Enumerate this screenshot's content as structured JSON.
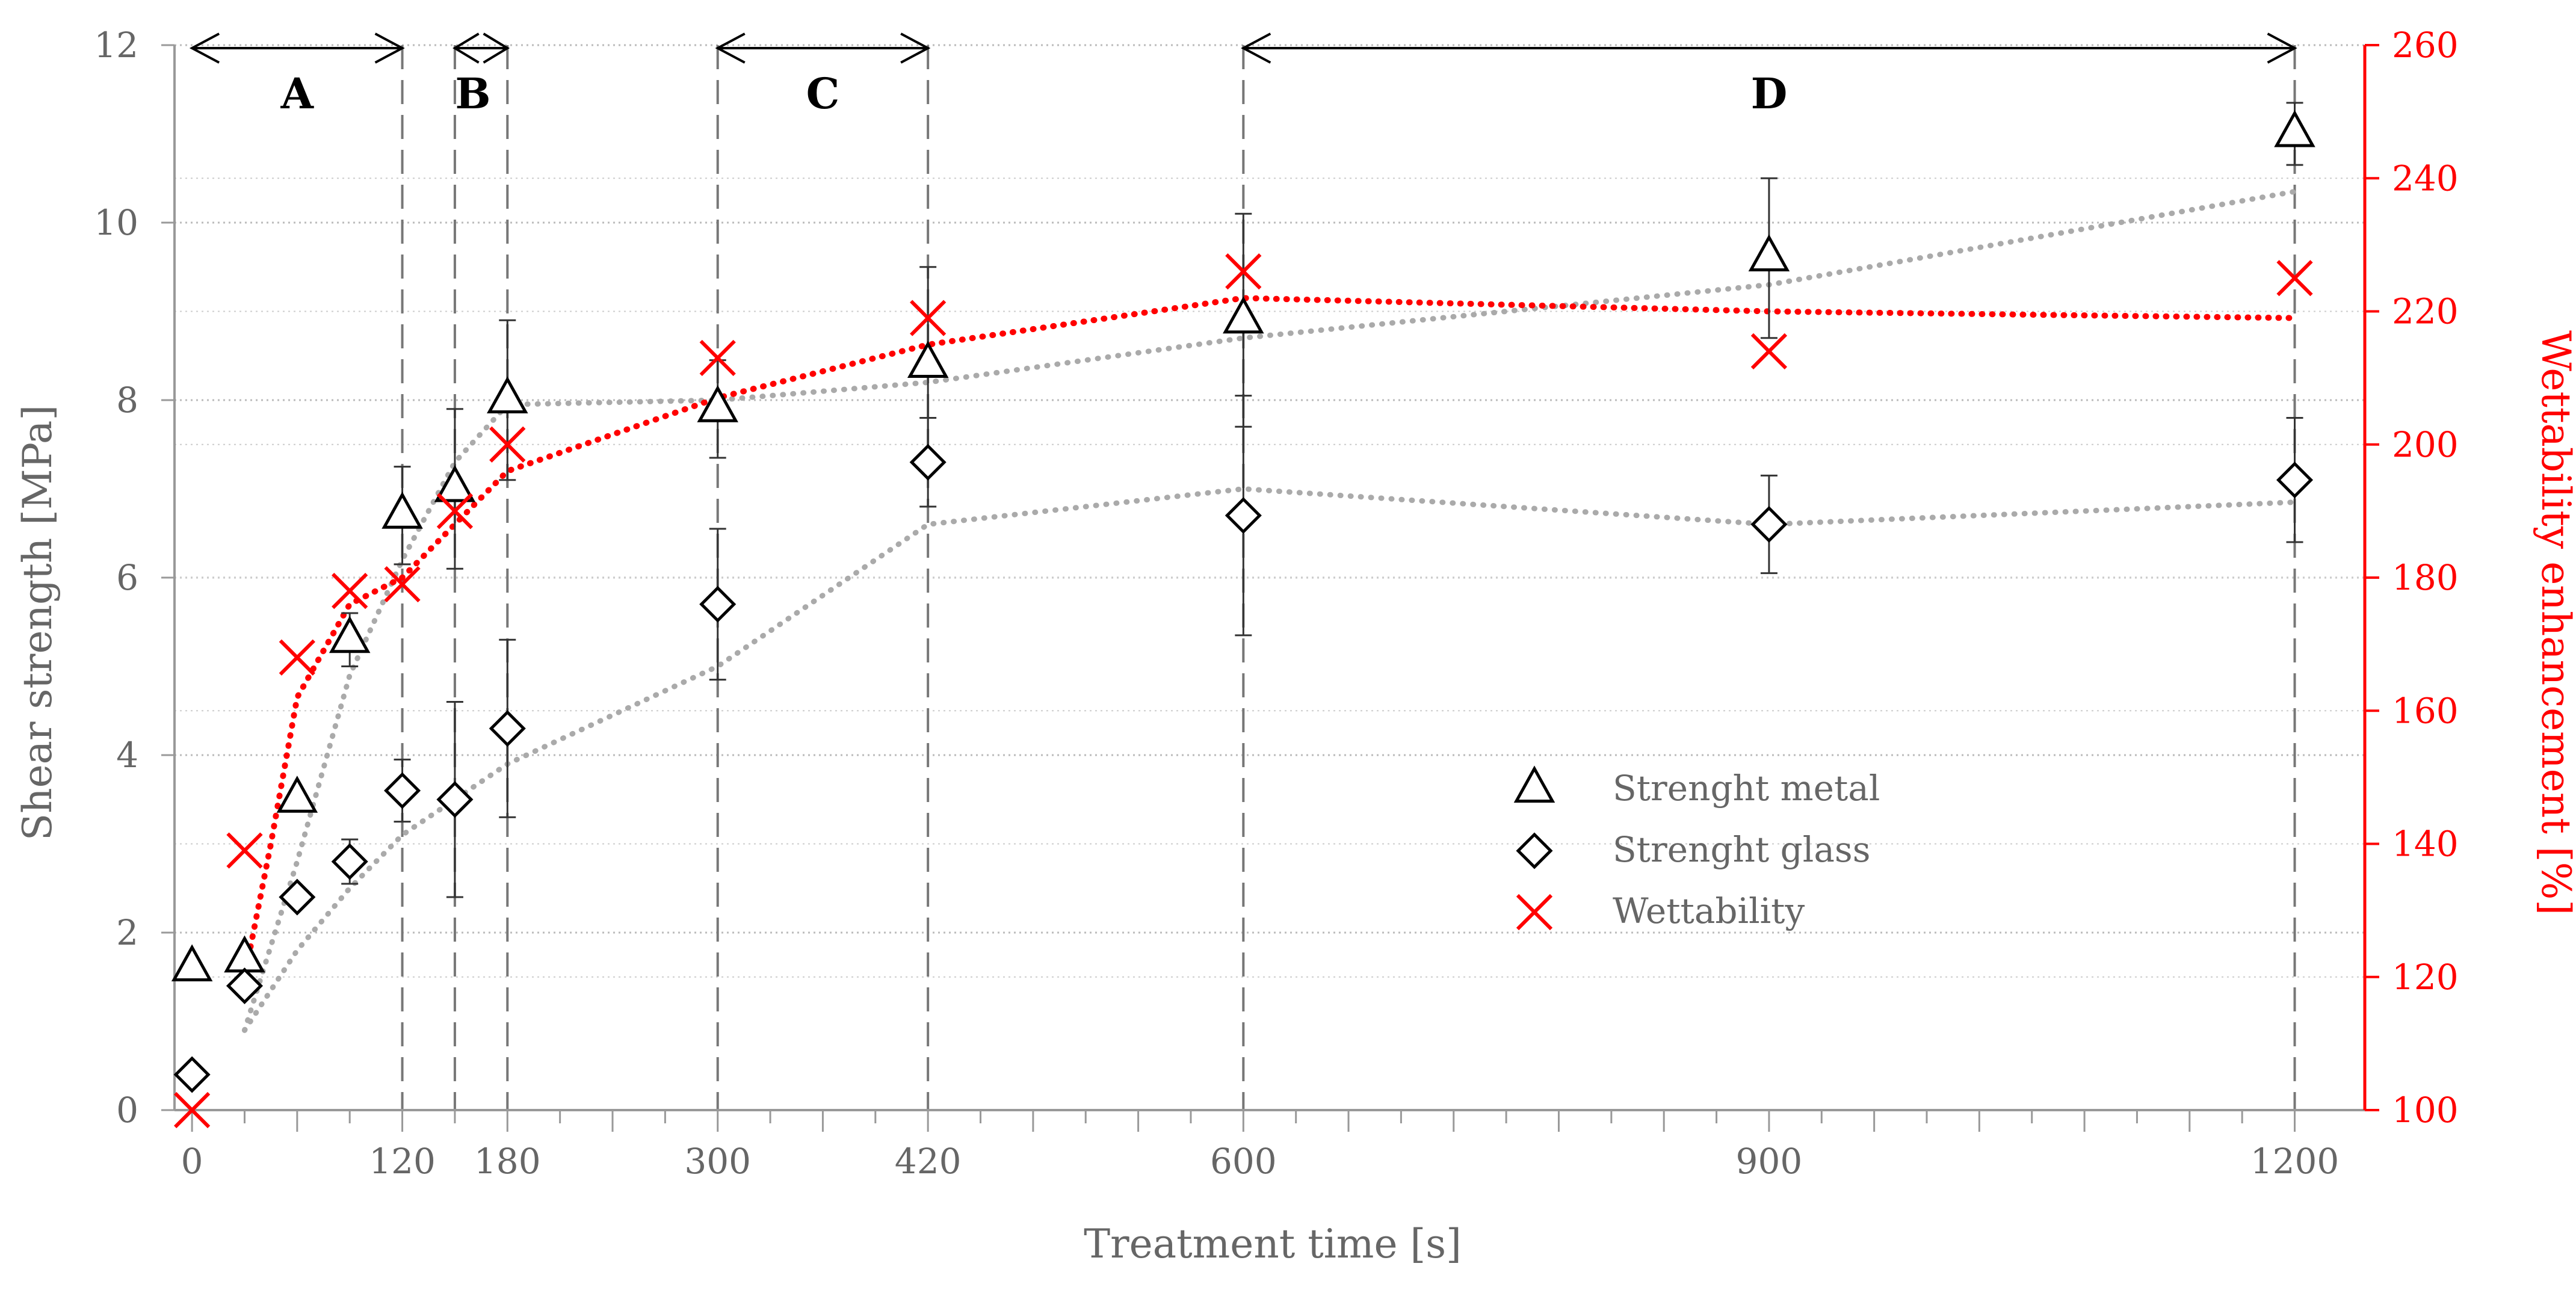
{
  "chart_data": {
    "type": "scatter",
    "title": "",
    "xlabel": "Treatment time [s]",
    "ylabel_left": "Shear strength [MPa]",
    "ylabel_right": "Wettability enhancement [%]",
    "xlim": [
      -10,
      1240
    ],
    "ylim_left": [
      0,
      12
    ],
    "ylim_right": [
      100,
      260
    ],
    "x_ticks": [
      0,
      120,
      180,
      300,
      420,
      600,
      900,
      1200
    ],
    "y_ticks_left": [
      0,
      2,
      4,
      6,
      8,
      10,
      12
    ],
    "y_ticks_right": [
      100,
      120,
      140,
      160,
      180,
      200,
      220,
      240,
      260
    ],
    "legend_position": "center-right",
    "colors": {
      "metal": "#000000",
      "glass": "#000000",
      "wettability": "#ff0000",
      "trend_gray": "#aaaaaa",
      "trend_red": "#ff0000",
      "axis": "#999999"
    },
    "regions": [
      {
        "label": "A",
        "start": 0,
        "end": 120
      },
      {
        "label": "B",
        "start": 150,
        "end": 180
      },
      {
        "label": "C",
        "start": 300,
        "end": 420
      },
      {
        "label": "D",
        "start": 600,
        "end": 1200
      }
    ],
    "series": [
      {
        "name": "Strenght metal",
        "marker": "triangle",
        "axis": "left",
        "x": [
          0,
          30,
          60,
          90,
          120,
          150,
          180,
          300,
          420,
          600,
          900,
          1200
        ],
        "y": [
          1.6,
          1.7,
          3.5,
          5.3,
          6.7,
          7.0,
          8.0,
          7.9,
          8.4,
          8.9,
          9.6,
          11.0
        ],
        "err": [
          0,
          0,
          0,
          0.3,
          0.55,
          0.9,
          0.9,
          0.55,
          1.1,
          1.2,
          0.9,
          0.35
        ]
      },
      {
        "name": "Strenght glass",
        "marker": "diamond",
        "axis": "left",
        "x": [
          0,
          30,
          60,
          90,
          120,
          150,
          180,
          300,
          420,
          600,
          900,
          1200
        ],
        "y": [
          0.4,
          1.4,
          2.4,
          2.8,
          3.6,
          3.5,
          4.3,
          5.7,
          7.3,
          6.7,
          6.6,
          7.1
        ],
        "err": [
          0,
          0,
          0,
          0.25,
          0.35,
          1.1,
          1.0,
          0.85,
          0.5,
          1.35,
          0.55,
          0.7
        ]
      },
      {
        "name": "Wettability",
        "marker": "cross",
        "axis": "right",
        "x": [
          0,
          30,
          60,
          90,
          120,
          150,
          180,
          300,
          420,
          600,
          900,
          1200
        ],
        "y": [
          100,
          139,
          168,
          178,
          179,
          190,
          200,
          213,
          219,
          226,
          214,
          225
        ],
        "err": [
          0,
          0,
          0,
          0,
          0,
          0,
          0,
          0,
          0,
          0,
          0,
          0
        ]
      }
    ],
    "trend_lines": [
      {
        "name": "metal-trend",
        "axis": "left",
        "color": "gray",
        "x": [
          30,
          60,
          90,
          120,
          150,
          180,
          300,
          420,
          600,
          900,
          1200
        ],
        "y": [
          0.9,
          2.8,
          4.9,
          6.2,
          7.3,
          7.95,
          8.0,
          8.2,
          8.7,
          9.3,
          10.35
        ]
      },
      {
        "name": "glass-trend",
        "axis": "left",
        "color": "gray",
        "x": [
          30,
          60,
          90,
          120,
          150,
          180,
          300,
          420,
          600,
          900,
          1200
        ],
        "y": [
          0.9,
          1.8,
          2.5,
          3.1,
          3.5,
          3.9,
          5.0,
          6.6,
          7.0,
          6.6,
          6.85
        ]
      },
      {
        "name": "wettability-trend",
        "axis": "right",
        "color": "red",
        "x": [
          30,
          45,
          60,
          90,
          120,
          150,
          180,
          300,
          420,
          600,
          900,
          1200
        ],
        "y": [
          120,
          140,
          162,
          176,
          180,
          188,
          196,
          207,
          215,
          222,
          220,
          219
        ]
      }
    ]
  }
}
